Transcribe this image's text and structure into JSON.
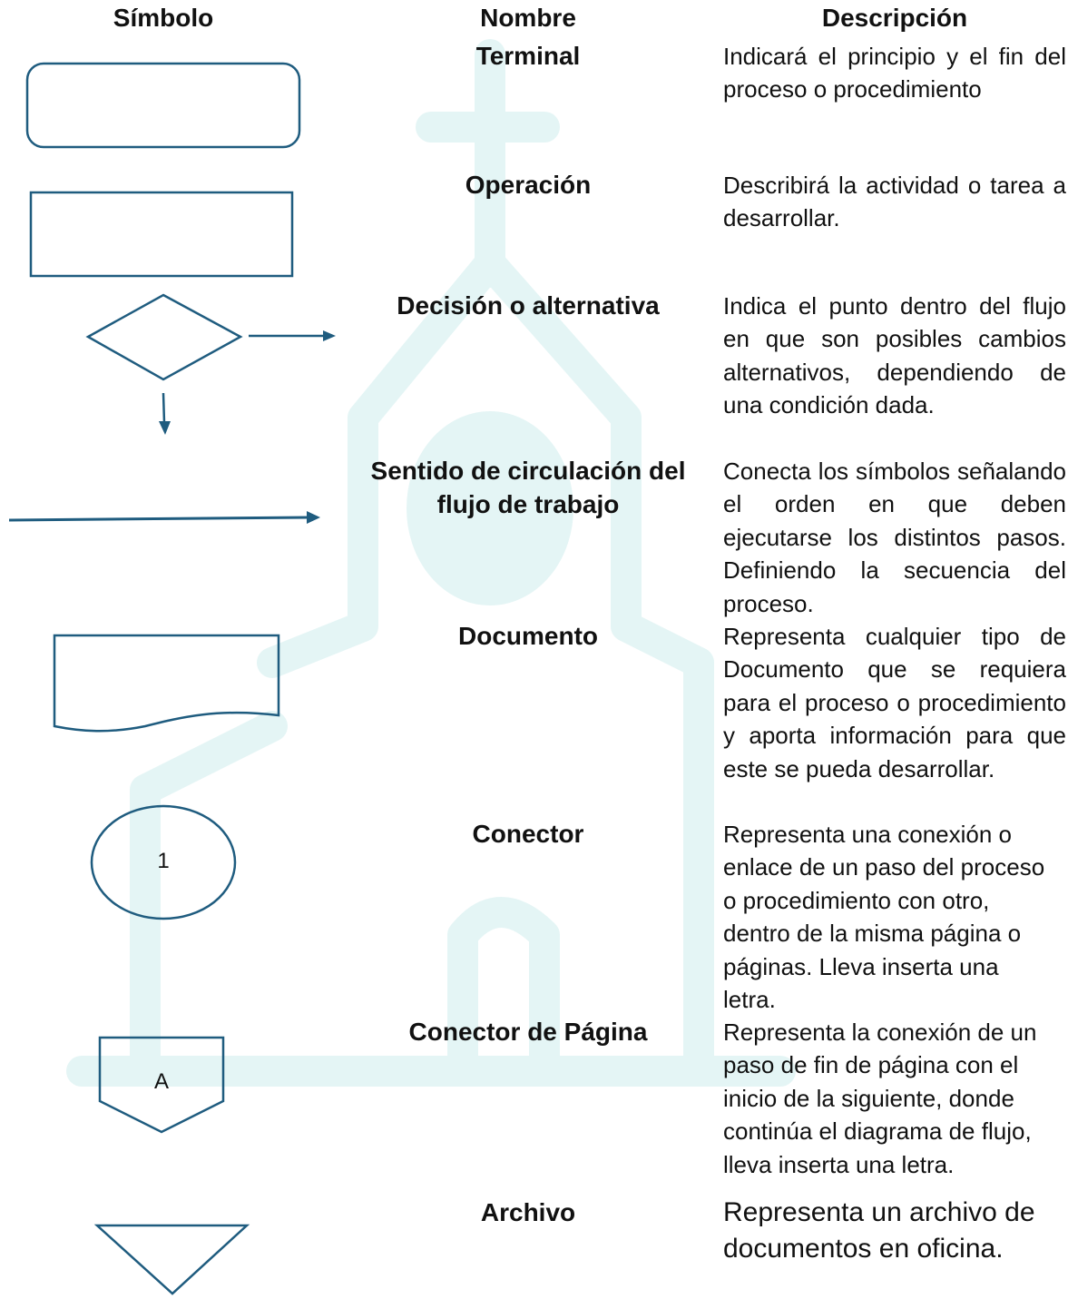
{
  "header": {
    "symbol": "Símbolo",
    "name": "Nombre",
    "description": "Descripción"
  },
  "rows": [
    {
      "name": "Terminal",
      "description": "Indicará el principio y el fin del proceso o procedimiento"
    },
    {
      "name": "Operación",
      "description": "Describirá la actividad o tarea a desarrollar."
    },
    {
      "name": "Decisión o alternativa",
      "description": "Indica el punto dentro del flujo en que son posibles cambios alternativos, dependiendo de una condición dada."
    },
    {
      "name": "Sentido de circulación del flujo de trabajo",
      "description": "Conecta los símbolos señalando el orden en que deben ejecutarse los distintos pasos. Definiendo la secuencia del proceso."
    },
    {
      "name": "Documento",
      "description": "Representa cualquier tipo de Documento que se requiera para el proceso o procedimiento y aporta información para que este se pueda desarrollar."
    },
    {
      "name": "Conector",
      "description": "Representa una conexión o enlace de un paso del proceso o procedimiento con otro, dentro de la misma página o páginas. Lleva inserta una letra.",
      "symbol_label": "1"
    },
    {
      "name": "Conector de Página",
      "description": "Representa la conexión de un paso de fin de página con el inicio de la siguiente, donde continúa el diagrama de flujo, lleva inserta una letra.",
      "symbol_label": "A"
    },
    {
      "name": "Archivo",
      "description": "Representa un archivo de documentos en oficina."
    }
  ]
}
